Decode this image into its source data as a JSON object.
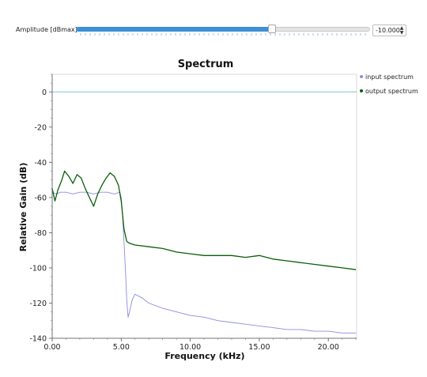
{
  "controls": {
    "amplitude_label": "Amplitude [dBmax]",
    "amplitude_value": "-10.000",
    "slider_fraction": 0.667
  },
  "colors": {
    "input": "#8c8ce0",
    "output": "#0a5e0a",
    "reference": "#7fc8c8",
    "accent": "#3d8fd6"
  },
  "chart_data": {
    "type": "line",
    "title": "Spectrum",
    "xlabel": "Frequency (kHz)",
    "ylabel": "Relative Gain (dB)",
    "xlim": [
      0,
      22.05
    ],
    "ylim": [
      -140,
      10
    ],
    "xticks": [
      "0.00",
      "5.00",
      "10.00",
      "15.00",
      "20.00"
    ],
    "xtick_values": [
      0,
      5,
      10,
      15,
      20
    ],
    "yticks": [
      "0",
      "-20",
      "-40",
      "-60",
      "-80",
      "-100",
      "-120",
      "-140"
    ],
    "ytick_values": [
      0,
      -20,
      -40,
      -60,
      -80,
      -100,
      -120,
      -140
    ],
    "grid": false,
    "legend_position": "top-right",
    "reference_line": 0,
    "series": [
      {
        "name": "input spectrum",
        "x": [
          0,
          0.3,
          0.6,
          1.0,
          1.5,
          2.0,
          2.5,
          3.0,
          3.5,
          4.0,
          4.5,
          4.9,
          5.0,
          5.1,
          5.2,
          5.3,
          5.4,
          5.5,
          5.6,
          5.8,
          6.0,
          6.5,
          7.0,
          8.0,
          9.0,
          10.0,
          11.0,
          12.0,
          13.0,
          14.0,
          15.0,
          16.0,
          17.0,
          18.0,
          19.0,
          20.0,
          21.0,
          22.0
        ],
        "y": [
          -57,
          -58,
          -57,
          -57,
          -58,
          -57,
          -57,
          -58,
          -57,
          -57,
          -58,
          -57,
          -60,
          -70,
          -85,
          -100,
          -118,
          -128,
          -125,
          -118,
          -115,
          -117,
          -120,
          -123,
          -125,
          -127,
          -128,
          -130,
          -131,
          -132,
          -133,
          -134,
          -135,
          -135,
          -136,
          -136,
          -137,
          -137
        ]
      },
      {
        "name": "output spectrum",
        "x": [
          0,
          0.2,
          0.4,
          0.7,
          0.9,
          1.2,
          1.5,
          1.8,
          2.1,
          2.4,
          2.7,
          3.0,
          3.3,
          3.6,
          3.9,
          4.2,
          4.5,
          4.8,
          5.0,
          5.2,
          5.4,
          5.6,
          6.0,
          7.0,
          8.0,
          9.0,
          10.0,
          11.0,
          12.0,
          13.0,
          14.0,
          15.0,
          16.0,
          17.0,
          18.0,
          19.0,
          20.0,
          21.0,
          22.0
        ],
        "y": [
          -55,
          -62,
          -56,
          -50,
          -45,
          -48,
          -52,
          -47,
          -49,
          -55,
          -60,
          -65,
          -58,
          -53,
          -49,
          -46,
          -48,
          -53,
          -62,
          -78,
          -85,
          -86,
          -87,
          -88,
          -89,
          -91,
          -92,
          -93,
          -93,
          -93,
          -94,
          -93,
          -95,
          -96,
          -97,
          -98,
          -99,
          -100,
          -101
        ]
      }
    ]
  }
}
